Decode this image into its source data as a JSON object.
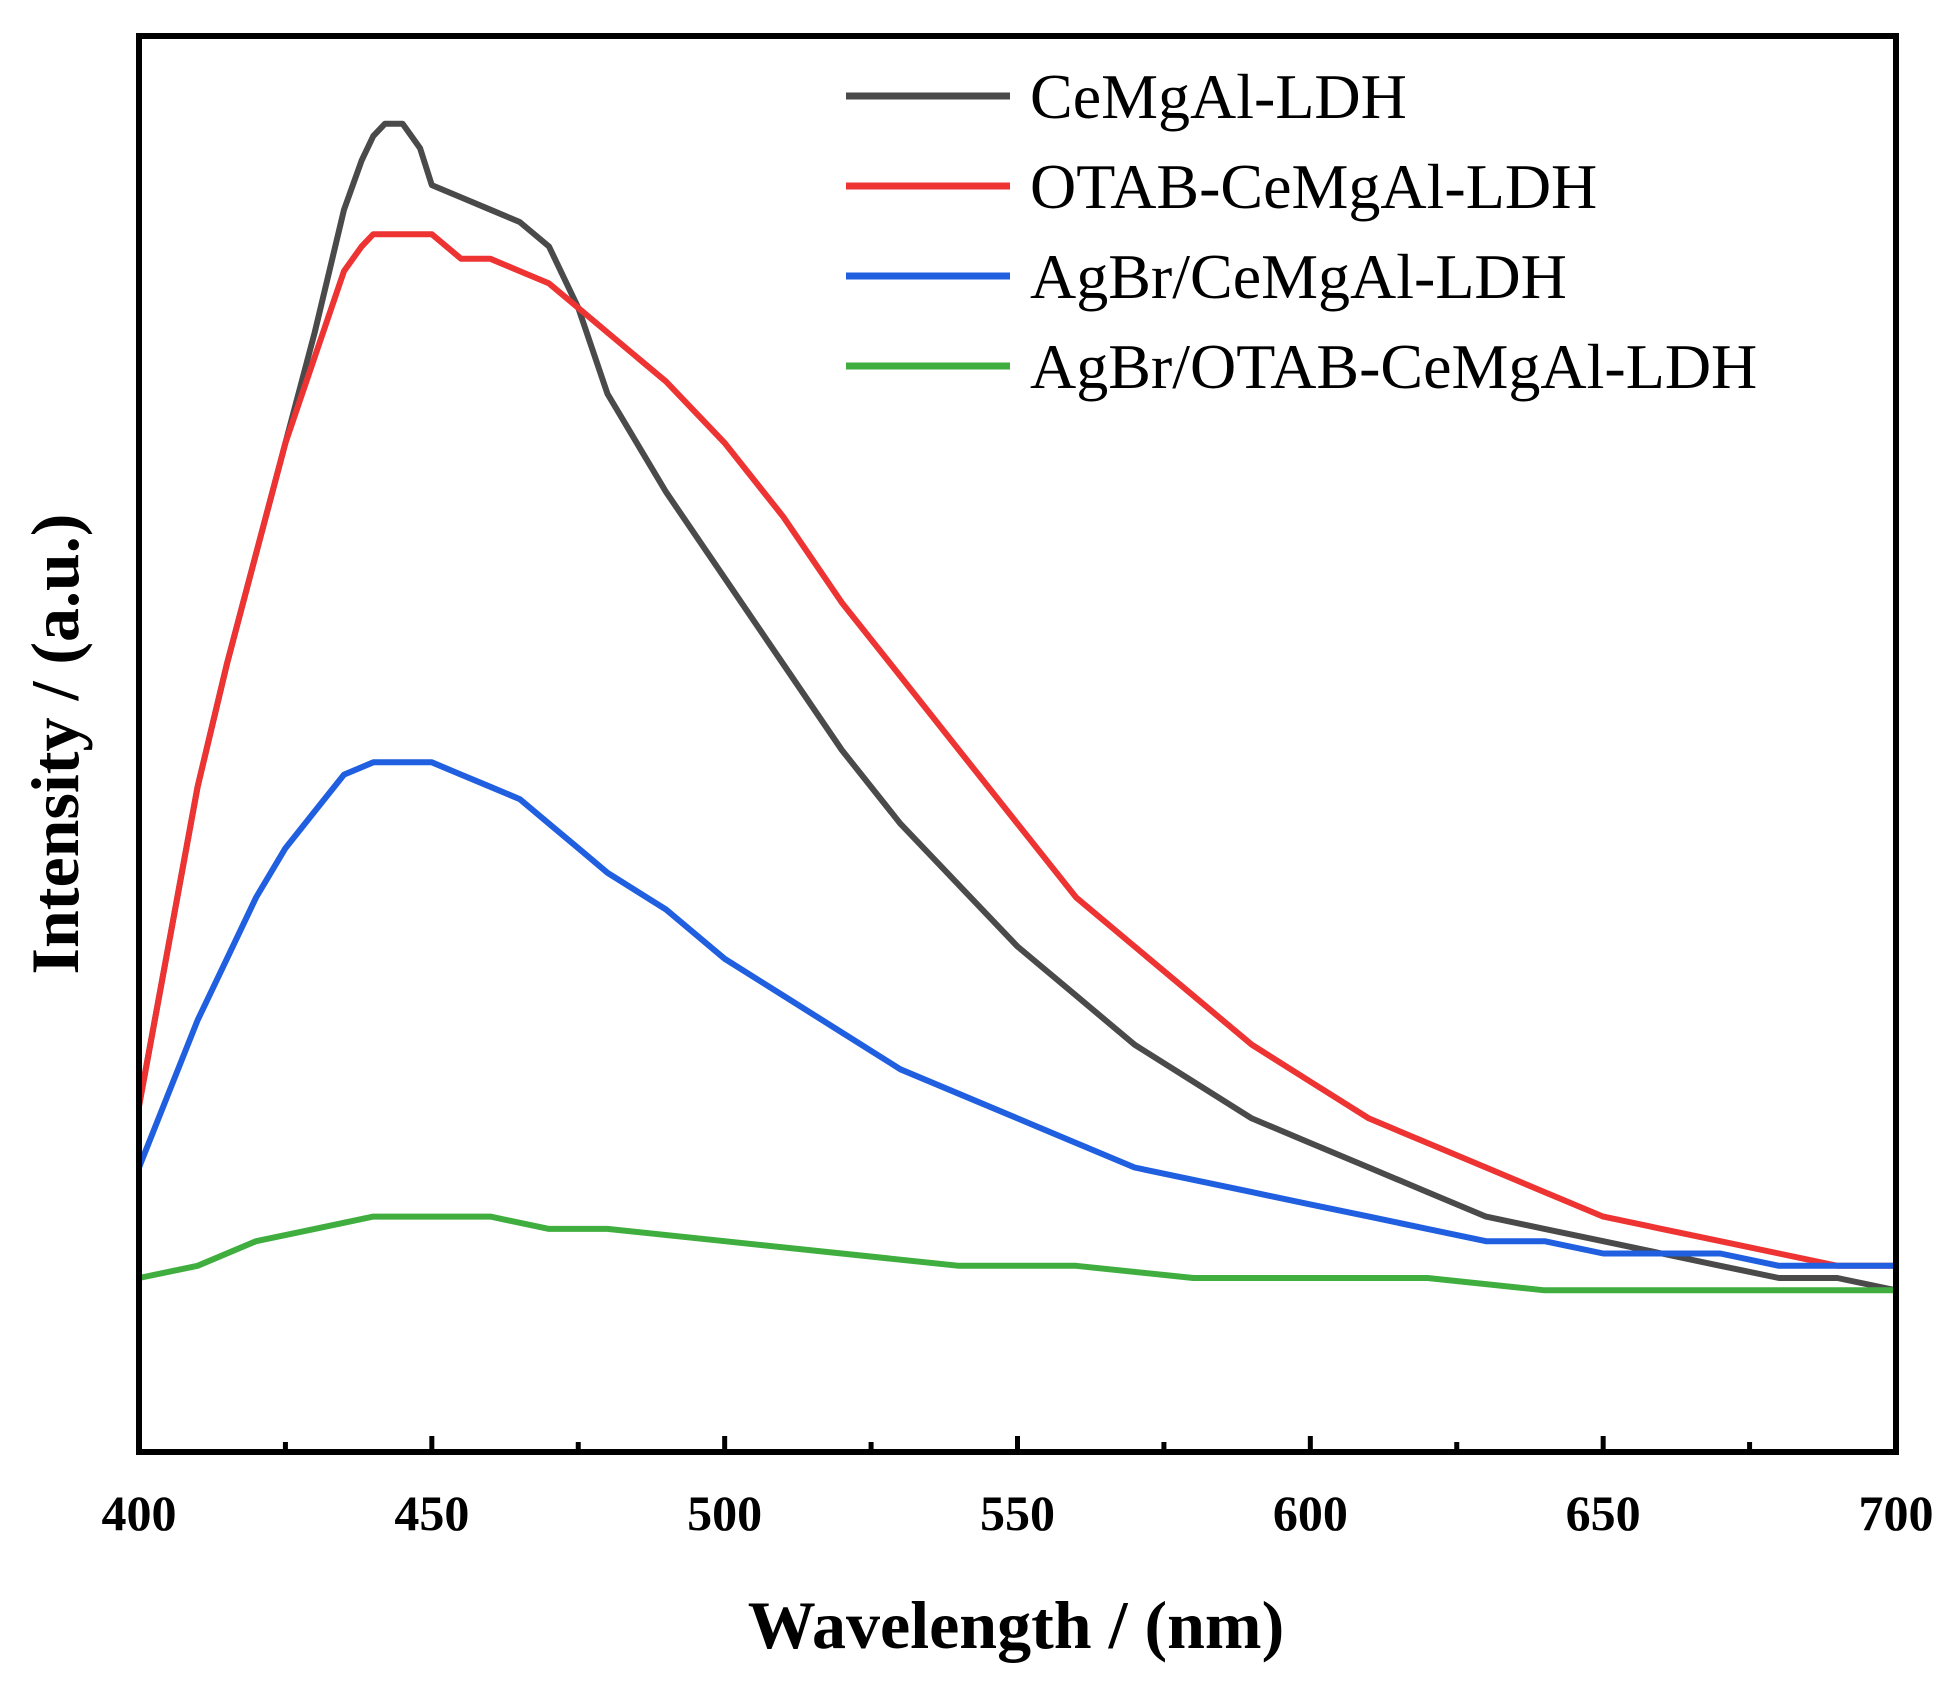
{
  "chart_data": {
    "type": "line",
    "title": "",
    "xlabel": "Wavelength / (nm)",
    "ylabel": "Intensity / (a.u.)",
    "xlim": [
      400,
      700
    ],
    "ylim": [
      0,
      1
    ],
    "x_ticks": [
      400,
      450,
      500,
      550,
      600,
      650,
      700
    ],
    "x_tick_labels": [
      "400",
      "450",
      "500",
      "550",
      "600",
      "650",
      "700"
    ],
    "x_minor_ticks": [
      425,
      475,
      525,
      575,
      625,
      675
    ],
    "y_ticks_shown": false,
    "grid": false,
    "legend_position": "top-right",
    "series": [
      {
        "name": "CeMgAl-LDH",
        "color": "#4a4a4a",
        "x": [
          400,
          405,
          410,
          415,
          420,
          425,
          430,
          435,
          438,
          440,
          442,
          445,
          448,
          450,
          455,
          460,
          465,
          470,
          475,
          480,
          490,
          500,
          510,
          520,
          530,
          540,
          550,
          560,
          570,
          580,
          590,
          600,
          610,
          620,
          630,
          640,
          650,
          660,
          670,
          680,
          690,
          700
        ],
        "values": [
          0.21,
          0.34,
          0.47,
          0.57,
          0.66,
          0.75,
          0.84,
          0.94,
          0.98,
          1.0,
          1.01,
          1.01,
          0.99,
          0.96,
          0.95,
          0.94,
          0.93,
          0.91,
          0.86,
          0.79,
          0.71,
          0.64,
          0.57,
          0.5,
          0.44,
          0.39,
          0.34,
          0.3,
          0.26,
          0.23,
          0.2,
          0.18,
          0.16,
          0.14,
          0.12,
          0.11,
          0.1,
          0.09,
          0.08,
          0.07,
          0.07,
          0.06
        ]
      },
      {
        "name": "OTAB-CeMgAl-LDH",
        "color": "#ee3333",
        "x": [
          400,
          405,
          410,
          415,
          420,
          425,
          430,
          435,
          438,
          440,
          445,
          450,
          455,
          460,
          465,
          470,
          475,
          480,
          490,
          500,
          510,
          520,
          530,
          540,
          550,
          560,
          570,
          580,
          590,
          600,
          610,
          620,
          630,
          640,
          650,
          660,
          670,
          680,
          690,
          700
        ],
        "values": [
          0.21,
          0.34,
          0.47,
          0.57,
          0.66,
          0.75,
          0.82,
          0.89,
          0.91,
          0.92,
          0.92,
          0.92,
          0.9,
          0.9,
          0.89,
          0.88,
          0.86,
          0.84,
          0.8,
          0.75,
          0.69,
          0.62,
          0.56,
          0.5,
          0.44,
          0.38,
          0.34,
          0.3,
          0.26,
          0.23,
          0.2,
          0.18,
          0.16,
          0.14,
          0.12,
          0.11,
          0.1,
          0.09,
          0.08,
          0.08
        ]
      },
      {
        "name": "AgBr/CeMgAl-LDH",
        "color": "#1f5fe0",
        "x": [
          400,
          405,
          410,
          415,
          420,
          425,
          430,
          435,
          440,
          445,
          450,
          455,
          460,
          465,
          470,
          475,
          480,
          490,
          500,
          510,
          520,
          530,
          540,
          550,
          560,
          570,
          580,
          590,
          600,
          610,
          620,
          630,
          640,
          650,
          660,
          670,
          680,
          690,
          700
        ],
        "values": [
          0.16,
          0.22,
          0.28,
          0.33,
          0.38,
          0.42,
          0.45,
          0.48,
          0.49,
          0.49,
          0.49,
          0.48,
          0.47,
          0.46,
          0.44,
          0.42,
          0.4,
          0.37,
          0.33,
          0.3,
          0.27,
          0.24,
          0.22,
          0.2,
          0.18,
          0.16,
          0.15,
          0.14,
          0.13,
          0.12,
          0.11,
          0.1,
          0.1,
          0.09,
          0.09,
          0.09,
          0.08,
          0.08,
          0.08
        ]
      },
      {
        "name": "AgBr/OTAB-CeMgAl-LDH",
        "color": "#3fae3f",
        "x": [
          400,
          410,
          420,
          430,
          440,
          450,
          460,
          470,
          480,
          500,
          520,
          540,
          560,
          580,
          600,
          620,
          640,
          660,
          680,
          700
        ],
        "values": [
          0.07,
          0.08,
          0.1,
          0.11,
          0.12,
          0.12,
          0.12,
          0.11,
          0.11,
          0.1,
          0.09,
          0.08,
          0.08,
          0.07,
          0.07,
          0.07,
          0.06,
          0.06,
          0.06,
          0.06
        ]
      }
    ]
  }
}
